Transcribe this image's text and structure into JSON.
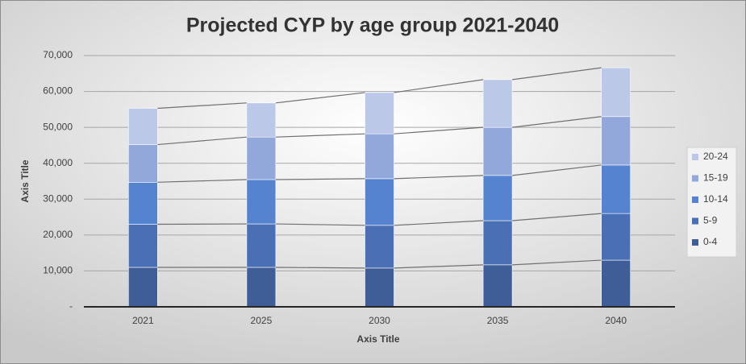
{
  "chart_data": {
    "type": "stacked_bar",
    "title": "Projected CYP by age group 2021-2040",
    "x_label": "Axis Title",
    "y_label": "Axis Title",
    "categories": [
      "2021",
      "2025",
      "2030",
      "2035",
      "2040"
    ],
    "series": [
      {
        "name": "0-4",
        "color": "#3f5e98",
        "values": [
          11000,
          11000,
          10800,
          11700,
          13000
        ]
      },
      {
        "name": "5-9",
        "color": "#4a6fb4",
        "values": [
          12000,
          12100,
          11900,
          12300,
          13000
        ]
      },
      {
        "name": "10-14",
        "color": "#5683cf",
        "values": [
          11700,
          12350,
          13000,
          12600,
          13500
        ]
      },
      {
        "name": "15-19",
        "color": "#93a8da",
        "values": [
          10500,
          11850,
          12500,
          13400,
          13500
        ]
      },
      {
        "name": "20-24",
        "color": "#bcc8e8",
        "values": [
          10100,
          9500,
          11500,
          13300,
          13600
        ]
      }
    ],
    "ylim": [
      0,
      70000
    ],
    "yticks": [
      {
        "value": 0,
        "label": "-"
      },
      {
        "value": 10000,
        "label": "10,000"
      },
      {
        "value": 20000,
        "label": "20,000"
      },
      {
        "value": 30000,
        "label": "30,000"
      },
      {
        "value": 40000,
        "label": "40,000"
      },
      {
        "value": 50000,
        "label": "50,000"
      },
      {
        "value": 60000,
        "label": "60,000"
      },
      {
        "value": 70000,
        "label": "70,000"
      }
    ],
    "grid": true,
    "legend": "right"
  }
}
